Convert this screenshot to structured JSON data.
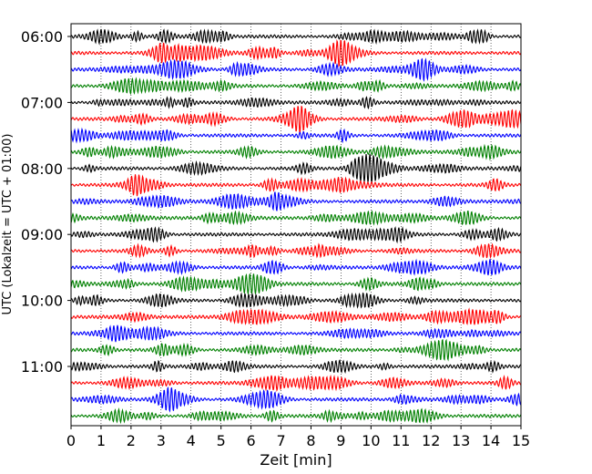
{
  "chart_data": {
    "type": "line",
    "xlabel": "Zeit  [min]",
    "ylabel": "UTC (Lokalzeit = UTC + 01:00)",
    "xlim": [
      0,
      15
    ],
    "x_ticks": [
      0,
      1,
      2,
      3,
      4,
      5,
      6,
      7,
      8,
      9,
      10,
      11,
      12,
      13,
      14,
      15
    ],
    "x_tick_labels": [
      "0",
      "1",
      "2",
      "3",
      "4",
      "5",
      "6",
      "7",
      "8",
      "9",
      "10",
      "11",
      "12",
      "13",
      "14",
      "15"
    ],
    "y_tick_labels": [
      "06:00",
      "07:00",
      "08:00",
      "09:00",
      "10:00",
      "11:00"
    ],
    "y_tick_trace_index": [
      0,
      4,
      8,
      12,
      16,
      20
    ],
    "trace_count": 24,
    "trace_colors": [
      "#000000",
      "#ff0000",
      "#0000ff",
      "#008000"
    ],
    "vertical_grid": true,
    "grid_style": "dotted"
  }
}
